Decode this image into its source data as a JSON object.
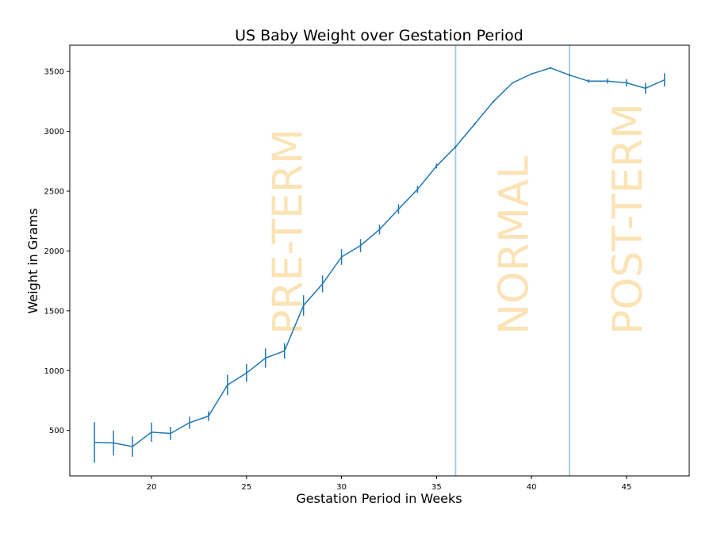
{
  "chart_data": {
    "type": "line",
    "title": "US Baby Weight over Gestation Period",
    "xlabel": "Gestation Period in Weeks",
    "ylabel": "Weight in Grams",
    "xlim": [
      15.7,
      48.3
    ],
    "ylim": [
      120,
      3720
    ],
    "x_ticks": [
      20,
      25,
      30,
      35,
      40,
      45
    ],
    "y_ticks": [
      500,
      1000,
      1500,
      2000,
      2500,
      3000,
      3500
    ],
    "grid": false,
    "line_color": "#1f77b4",
    "vline_color": "#a6cde3",
    "region_text_color": "#fbe3b5",
    "series": [
      {
        "x": [
          17,
          18,
          19,
          20,
          21,
          22,
          23,
          24,
          25,
          26,
          27,
          28,
          29,
          30,
          31,
          32,
          33,
          34,
          35,
          36,
          37,
          38,
          39,
          40,
          41,
          42,
          43,
          44,
          45,
          46,
          47
        ],
        "y": [
          400,
          395,
          365,
          485,
          475,
          565,
          620,
          880,
          980,
          1105,
          1165,
          1545,
          1725,
          1950,
          2045,
          2180,
          2350,
          2515,
          2710,
          2870,
          3060,
          3250,
          3405,
          3480,
          3530,
          3470,
          3420,
          3420,
          3405,
          3360,
          3430
        ],
        "err": [
          170,
          105,
          85,
          80,
          55,
          50,
          40,
          85,
          75,
          80,
          65,
          85,
          70,
          65,
          55,
          40,
          40,
          30,
          20,
          12,
          10,
          8,
          6,
          6,
          8,
          10,
          15,
          20,
          30,
          45,
          55
        ]
      }
    ],
    "vlines": [
      36,
      42
    ],
    "regions": [
      {
        "label": "PRE-TERM",
        "x": 27.9,
        "y": 1300
      },
      {
        "label": "NORMAL",
        "x": 39.8,
        "y": 1300
      },
      {
        "label": "POST-TERM",
        "x": 45.8,
        "y": 1300
      }
    ]
  }
}
